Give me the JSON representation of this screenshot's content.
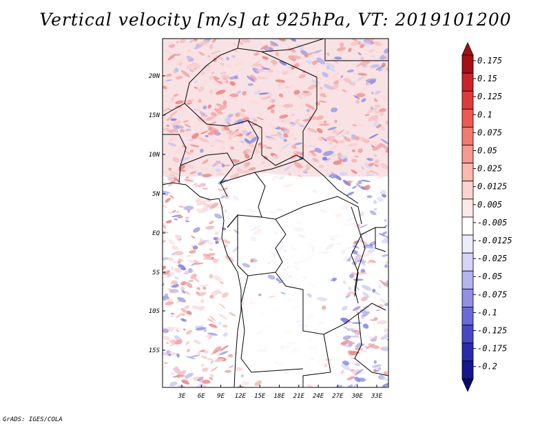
{
  "title": "Vertical velocity [m/s] at 925hPa, VT: 2019101200",
  "footer": "GrADS: IGES/COLA",
  "map": {
    "x_labels": [
      "3E",
      "6E",
      "9E",
      "12E",
      "15E",
      "18E",
      "21E",
      "24E",
      "27E",
      "30E",
      "33E"
    ],
    "y_labels": [
      "20N",
      "15N",
      "10N",
      "5N",
      "EQ",
      "5S",
      "10S",
      "15S"
    ]
  },
  "colorbar": {
    "labels": [
      "0.175",
      "0.15",
      "0.125",
      "0.1",
      "0.075",
      "0.05",
      "0.025",
      "0.0125",
      "0.005",
      "-0.005",
      "-0.0125",
      "-0.025",
      "-0.05",
      "-0.075",
      "-0.1",
      "-0.125",
      "-0.175",
      "-0.2"
    ],
    "colors": [
      "#a50f15",
      "#c8242a",
      "#de3b3b",
      "#ec5a52",
      "#f27b70",
      "#f59a8f",
      "#f9b9ad",
      "#fbd5cd",
      "#fde9e5",
      "#ffffff",
      "#ececfb",
      "#d4d4f6",
      "#b4b4ef",
      "#9090e6",
      "#6a6ad8",
      "#4848c6",
      "#2a2aae",
      "#15158e",
      "#0a0a6e"
    ]
  }
}
